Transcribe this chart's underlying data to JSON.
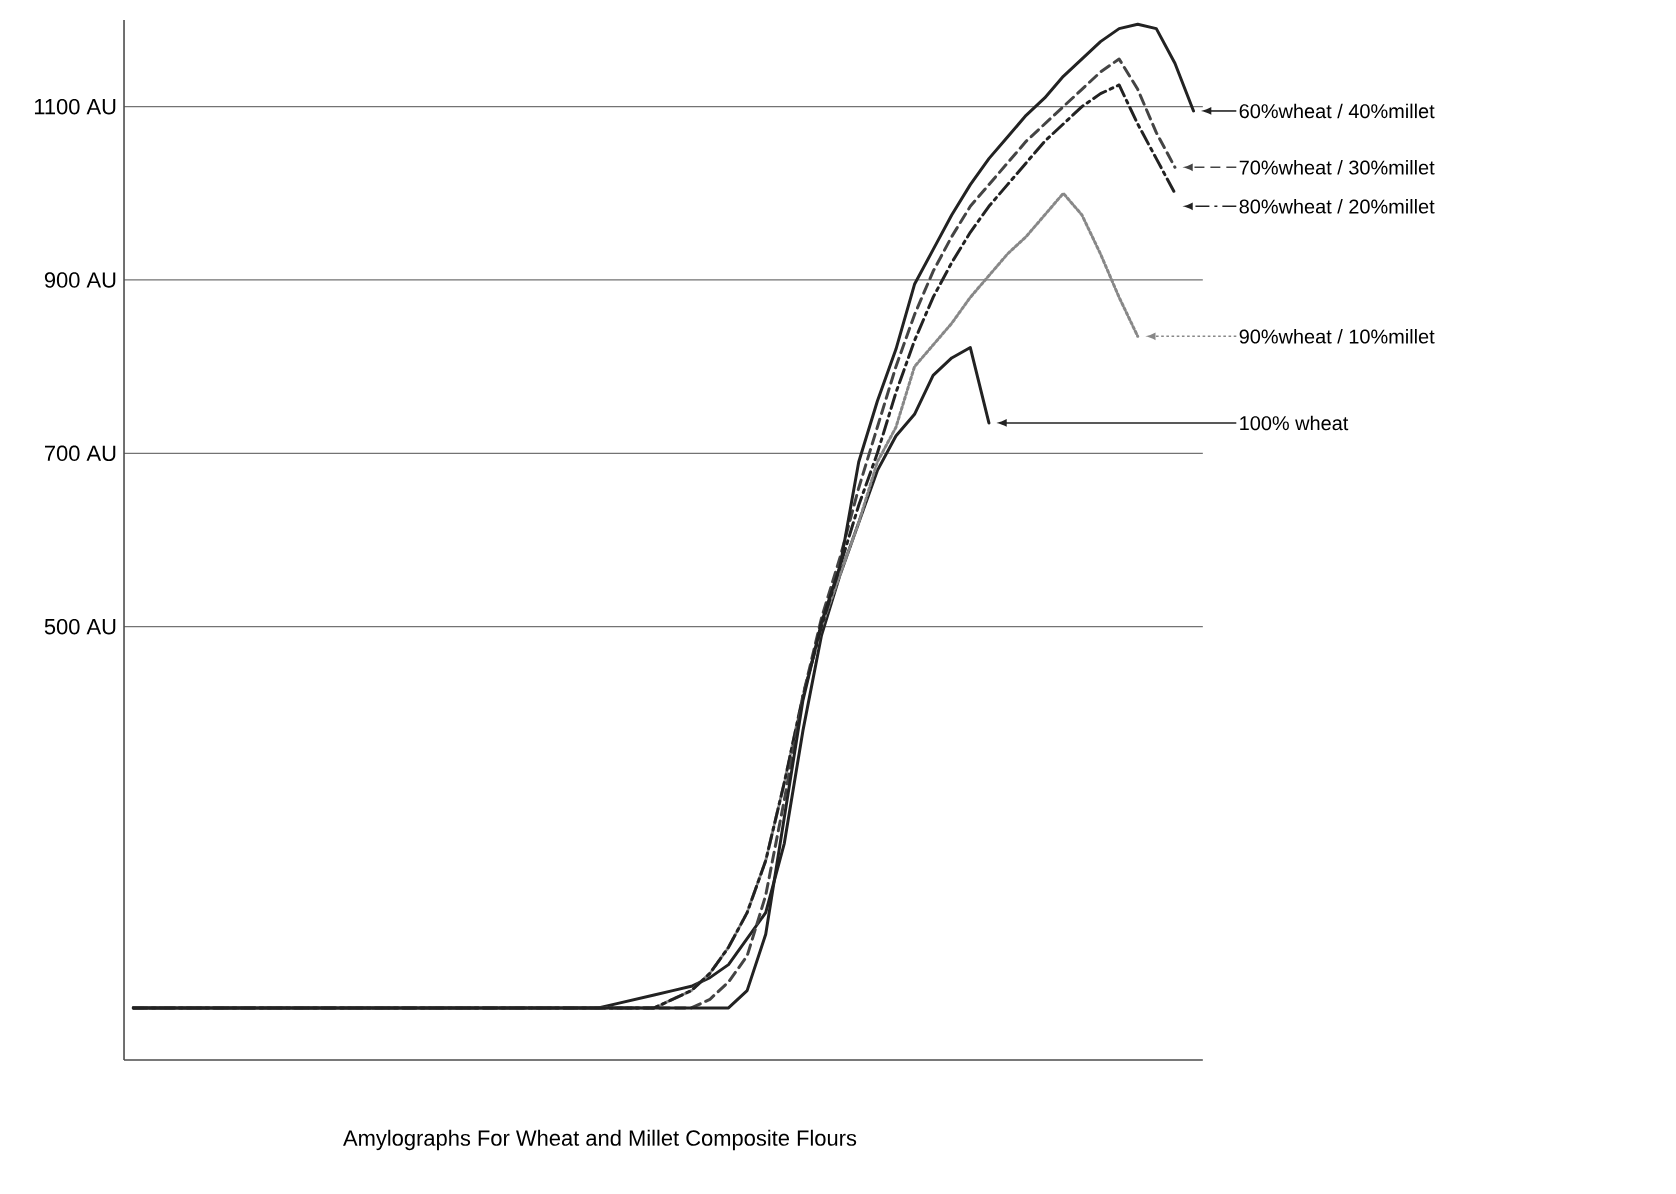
{
  "chart_data": {
    "type": "line",
    "title": "Amylographs For Wheat and Millet Composite Flours",
    "categories": [
      null,
      null,
      null,
      null,
      null,
      null,
      null,
      null,
      null,
      null,
      null,
      null,
      null,
      null,
      null,
      null,
      null,
      null,
      null,
      null,
      null,
      null,
      null,
      null,
      null,
      null,
      null,
      null,
      null,
      null,
      null,
      null,
      null,
      null,
      null,
      null,
      null,
      null,
      null,
      null,
      null,
      null,
      null,
      null,
      null,
      null,
      null,
      null,
      null,
      null,
      null,
      null,
      null,
      null,
      null,
      null,
      null,
      null
    ],
    "series": [
      {
        "name": "60%wheat / 40%millet",
        "color": "#222222",
        "line_style": "solid",
        "values": [
          60,
          60,
          60,
          60,
          60,
          60,
          60,
          60,
          60,
          60,
          60,
          60,
          60,
          60,
          60,
          60,
          60,
          60,
          60,
          60,
          60,
          60,
          60,
          60,
          60,
          60,
          60,
          60,
          60,
          60,
          60,
          60,
          60,
          80,
          145,
          280,
          415,
          505,
          570,
          690,
          760,
          820,
          895,
          935,
          975,
          1010,
          1040,
          1065,
          1090,
          1110,
          1135,
          1155,
          1175,
          1190,
          1195,
          1190,
          1150,
          1095
        ]
      },
      {
        "name": "70%wheat / 30%millet",
        "color": "#444444",
        "line_style": "dashed",
        "values": [
          60,
          60,
          60,
          60,
          60,
          60,
          60,
          60,
          60,
          60,
          60,
          60,
          60,
          60,
          60,
          60,
          60,
          60,
          60,
          60,
          60,
          60,
          60,
          60,
          60,
          60,
          60,
          60,
          60,
          60,
          60,
          70,
          90,
          120,
          190,
          300,
          420,
          510,
          580,
          660,
          730,
          800,
          860,
          910,
          950,
          985,
          1010,
          1035,
          1060,
          1080,
          1100,
          1120,
          1140,
          1155,
          1120,
          1070,
          1030,
          null
        ]
      },
      {
        "name": "80%wheat / 20%millet",
        "color": "#222222",
        "line_style": "dashdot",
        "values": [
          60,
          60,
          60,
          60,
          60,
          60,
          60,
          60,
          60,
          60,
          60,
          60,
          60,
          60,
          60,
          60,
          60,
          60,
          60,
          60,
          60,
          60,
          60,
          60,
          60,
          60,
          60,
          60,
          60,
          70,
          80,
          100,
          130,
          170,
          230,
          320,
          420,
          500,
          570,
          640,
          700,
          770,
          830,
          880,
          920,
          955,
          985,
          1010,
          1035,
          1060,
          1080,
          1100,
          1115,
          1125,
          1080,
          1040,
          1000,
          null
        ]
      },
      {
        "name": "90%wheat / 10%millet",
        "color": "#888888",
        "line_style": "dotted",
        "values": [
          60,
          60,
          60,
          60,
          60,
          60,
          60,
          60,
          60,
          60,
          60,
          60,
          60,
          60,
          60,
          60,
          60,
          60,
          60,
          60,
          60,
          60,
          60,
          60,
          60,
          60,
          60,
          60,
          60,
          70,
          80,
          100,
          130,
          170,
          230,
          320,
          420,
          500,
          560,
          620,
          690,
          730,
          800,
          825,
          850,
          880,
          905,
          930,
          950,
          975,
          1000,
          975,
          930,
          880,
          835,
          null,
          null,
          null
        ]
      },
      {
        "name": "100% wheat",
        "color": "#222222",
        "line_style": "solid",
        "values": [
          60,
          60,
          60,
          60,
          60,
          60,
          60,
          60,
          60,
          60,
          60,
          60,
          60,
          60,
          60,
          60,
          60,
          60,
          60,
          60,
          60,
          60,
          60,
          60,
          60,
          60,
          65,
          70,
          75,
          80,
          85,
          95,
          110,
          140,
          170,
          250,
          380,
          490,
          560,
          620,
          680,
          720,
          745,
          790,
          810,
          822,
          735,
          null,
          null,
          null,
          null,
          null,
          null,
          null,
          null,
          null,
          null,
          null
        ]
      }
    ],
    "ylim": [
      0,
      1200
    ],
    "yticks": [
      {
        "value": 500,
        "label": "500 AU"
      },
      {
        "value": 700,
        "label": "700 AU"
      },
      {
        "value": 900,
        "label": "900 AU"
      },
      {
        "value": 1100,
        "label": "1100 AU"
      }
    ],
    "grid": "y",
    "legend": "right",
    "tick_labels": "y"
  }
}
